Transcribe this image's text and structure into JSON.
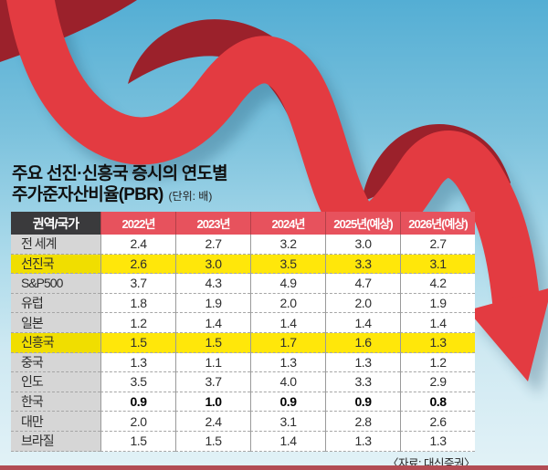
{
  "title": {
    "line1": "주요 선진·신흥국 증시의 연도별",
    "line2": "주가준자산비율(PBR)",
    "unit_label": "(단위: 배)"
  },
  "source": "〈자료: 대신증권〉",
  "colors": {
    "ribbon_red": "#e33b41",
    "ribbon_dark_red": "#9b212b",
    "header_red": "#e7525d",
    "header_dark": "#3a3a3c",
    "highlight_yellow": "#ffe70a",
    "label_gray": "#d6d6d6",
    "sky_top": "#54aed4",
    "sky_bottom": "#e2f2f7",
    "bottom_strip": "#b24c54"
  },
  "chart_data": {
    "type": "table",
    "title": "주요 선진·신흥국 증시의 연도별 주가준자산비율(PBR)",
    "unit": "배",
    "columns": [
      "권역/국가",
      "2022년",
      "2023년",
      "2024년",
      "2025년(예상)",
      "2026년(예상)"
    ],
    "rows": [
      {
        "label": "전 세계",
        "values": [
          2.4,
          2.7,
          3.2,
          3.0,
          2.7
        ],
        "highlight": false,
        "bold": false
      },
      {
        "label": "선진국",
        "values": [
          2.6,
          3.0,
          3.5,
          3.3,
          3.1
        ],
        "highlight": true,
        "bold": false
      },
      {
        "label": "S&P500",
        "values": [
          3.7,
          4.3,
          4.9,
          4.7,
          4.2
        ],
        "highlight": false,
        "bold": false
      },
      {
        "label": "유럽",
        "values": [
          1.8,
          1.9,
          2.0,
          2.0,
          1.9
        ],
        "highlight": false,
        "bold": false
      },
      {
        "label": "일본",
        "values": [
          1.2,
          1.4,
          1.4,
          1.4,
          1.4
        ],
        "highlight": false,
        "bold": false
      },
      {
        "label": "신흥국",
        "values": [
          1.5,
          1.5,
          1.7,
          1.6,
          1.3
        ],
        "highlight": true,
        "bold": false
      },
      {
        "label": "중국",
        "values": [
          1.3,
          1.1,
          1.3,
          1.3,
          1.2
        ],
        "highlight": false,
        "bold": false
      },
      {
        "label": "인도",
        "values": [
          3.5,
          3.7,
          4.0,
          3.3,
          2.9
        ],
        "highlight": false,
        "bold": false
      },
      {
        "label": "한국",
        "values": [
          0.9,
          1.0,
          0.9,
          0.9,
          0.8
        ],
        "highlight": false,
        "bold": true
      },
      {
        "label": "대만",
        "values": [
          2.0,
          2.4,
          3.1,
          2.8,
          2.6
        ],
        "highlight": false,
        "bold": false
      },
      {
        "label": "브라질",
        "values": [
          1.5,
          1.5,
          1.4,
          1.3,
          1.3
        ],
        "highlight": false,
        "bold": false
      }
    ]
  }
}
